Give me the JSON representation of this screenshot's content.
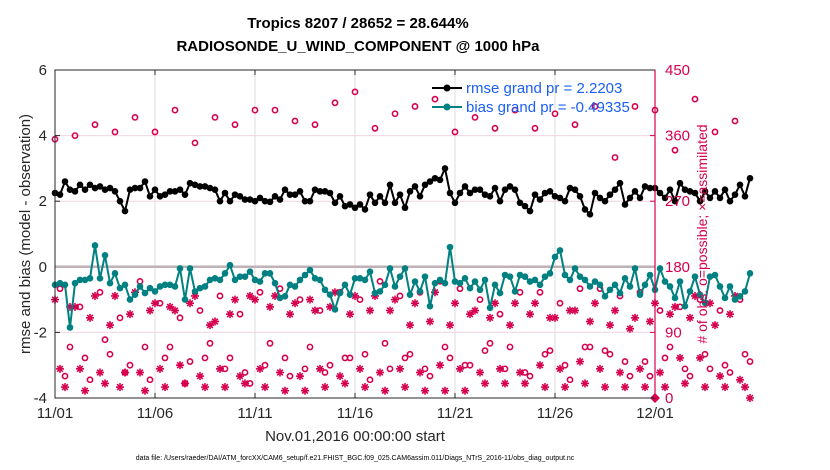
{
  "chart_data": {
    "type": "line",
    "title": "Tropics 8207 / 28652 = 28.644%",
    "subtitle": "RADIOSONDE_U_WIND_COMPONENT @ 1000 hPa",
    "xlabel": "Nov.01,2016 00:00:00 start",
    "ylabel": "rmse and bias (model - observation)",
    "ylabel_right": "# of obs: o=possible; ×=assimilated",
    "footnote": "data file: /Users/raeder/DAI/ATM_forcXX/CAM6_setup/f.e21.FHIST_BGC.f09_025.CAM6assim.011/Diags_NTrS_2016-11/obs_diag_output.nc",
    "x_ticks": [
      "11/01",
      "11/06",
      "11/11",
      "11/16",
      "11/21",
      "11/26",
      "12/01"
    ],
    "x_range_days": [
      0,
      30
    ],
    "ylim": [
      -4,
      6
    ],
    "y_ticks": [
      "-4",
      "-2",
      "0",
      "2",
      "4",
      "6"
    ],
    "ylim_right": [
      0,
      450
    ],
    "y_ticks_right": [
      "0",
      "90",
      "180",
      "270",
      "360",
      "450"
    ],
    "grid": true,
    "legend_position": "top-right",
    "legend": [
      {
        "label": "rmse grand pr = 2.2203",
        "color": "#000000",
        "marker": "filled-circle"
      },
      {
        "label": "bias grand pr = -0.49335",
        "color": "#008080",
        "marker": "filled-circle"
      }
    ],
    "colors": {
      "rmse": "#000000",
      "bias": "#008080",
      "obs": "#d6004f",
      "legend_text": "#1a5ff5"
    },
    "time_step_days": 0.25,
    "series": [
      {
        "name": "rmse",
        "values": [
          2.25,
          2.2,
          2.6,
          2.35,
          2.3,
          2.5,
          2.35,
          2.5,
          2.4,
          2.45,
          2.35,
          2.4,
          2.3,
          2.0,
          1.7,
          2.35,
          2.4,
          2.4,
          2.6,
          2.15,
          2.35,
          2.15,
          2.2,
          2.3,
          2.3,
          2.35,
          2.2,
          2.55,
          2.5,
          2.45,
          2.45,
          2.4,
          2.35,
          2.0,
          2.25,
          2.0,
          2.2,
          2.15,
          2.05,
          2.05,
          2.0,
          2.1,
          2.0,
          1.98,
          2.15,
          2.05,
          2.35,
          2.2,
          2.2,
          2.3,
          2.0,
          2.0,
          2.35,
          2.3,
          2.3,
          2.25,
          1.95,
          2.15,
          1.85,
          1.9,
          1.8,
          1.9,
          1.75,
          2.2,
          1.95,
          2.15,
          1.95,
          2.5,
          1.95,
          2.2,
          1.8,
          2.3,
          2.45,
          2.15,
          2.5,
          2.6,
          2.7,
          2.65,
          3.0,
          2.25,
          1.95,
          2.25,
          2.45,
          2.25,
          2.35,
          2.35,
          2.2,
          2.15,
          2.4,
          2.0,
          2.35,
          2.45,
          2.35,
          1.95,
          1.85,
          1.7,
          2.2,
          2.05,
          2.25,
          2.3,
          2.15,
          2.1,
          2.0,
          2.4,
          2.35,
          2.15,
          1.75,
          1.6,
          2.25,
          2.1,
          2.0,
          2.2,
          2.35,
          2.55,
          1.9,
          2.1,
          2.3,
          2.1,
          2.45,
          2.4,
          2.4,
          2.25,
          2.1,
          2.35,
          2.0,
          2.55,
          2.35,
          2.3,
          2.25,
          2.0,
          2.3,
          2.1,
          2.3,
          2.1,
          2.35,
          2.0,
          2.2,
          2.5,
          2.15,
          2.7
        ]
      },
      {
        "name": "bias",
        "values": [
          -0.55,
          -0.5,
          -0.55,
          -1.85,
          -0.5,
          -0.4,
          -0.4,
          -0.35,
          0.65,
          -0.35,
          0.35,
          -0.5,
          -0.2,
          -0.65,
          -0.55,
          -1.0,
          -0.85,
          -0.6,
          -0.8,
          -0.65,
          -0.75,
          -0.6,
          -0.55,
          -0.55,
          -0.6,
          -0.05,
          -1.0,
          -0.05,
          -0.75,
          -0.65,
          -0.6,
          -0.4,
          -0.35,
          -0.4,
          -0.2,
          0.05,
          -0.4,
          -0.3,
          -0.3,
          -0.15,
          -0.4,
          -0.45,
          -0.2,
          -0.2,
          -0.5,
          -0.95,
          -0.9,
          -0.55,
          -0.6,
          -0.4,
          -0.25,
          -0.1,
          -0.35,
          -0.4,
          -0.7,
          -0.85,
          -1.3,
          -0.8,
          -0.55,
          -0.85,
          -0.35,
          -0.35,
          -0.4,
          -0.15,
          -0.8,
          -0.75,
          -0.55,
          -0.05,
          -0.6,
          -0.3,
          -0.05,
          -0.85,
          -0.45,
          -0.75,
          -0.3,
          -1.2,
          -0.5,
          -0.4,
          -0.5,
          0.6,
          -0.45,
          -0.5,
          -0.35,
          -0.65,
          -0.45,
          -0.7,
          -0.4,
          -1.25,
          -0.55,
          -0.8,
          -0.25,
          -0.3,
          -0.75,
          -0.25,
          -0.3,
          -0.45,
          -0.4,
          -0.55,
          -0.3,
          -0.2,
          0.3,
          0.5,
          -0.25,
          -0.4,
          -0.05,
          -0.3,
          -0.4,
          -0.6,
          -0.45,
          -0.55,
          -0.9,
          -0.7,
          -0.55,
          -0.8,
          -0.35,
          -0.6,
          -0.05,
          -0.85,
          -0.55,
          -0.25,
          -0.7,
          -0.05,
          -0.45,
          -0.6,
          -0.95,
          -0.45,
          -1.2,
          -0.75,
          -0.3,
          -0.85,
          -1.1,
          -0.3,
          -0.25,
          -0.6,
          -0.95,
          -0.6,
          -1.0,
          -0.9,
          -0.75,
          -0.2
        ]
      },
      {
        "name": "obs_possible",
        "values": [
          355,
          150,
          30,
          70,
          360,
          125,
          55,
          25,
          375,
          145,
          80,
          60,
          365,
          110,
          35,
          45,
          385,
          160,
          70,
          25,
          365,
          130,
          55,
          70,
          395,
          110,
          20,
          50,
          350,
          120,
          55,
          75,
          385,
          140,
          40,
          55,
          375,
          115,
          35,
          20,
          395,
          145,
          45,
          75,
          395,
          150,
          55,
          30,
          380,
          135,
          40,
          70,
          375,
          120,
          35,
          45,
          405,
          145,
          55,
          55,
          420,
          135,
          60,
          25,
          370,
          160,
          75,
          40,
          390,
          140,
          55,
          60,
          400,
          145,
          40,
          30,
          410,
          160,
          70,
          55,
          365,
          150,
          45,
          45,
          385,
          135,
          65,
          75,
          370,
          115,
          40,
          70,
          395,
          145,
          35,
          30,
          370,
          145,
          60,
          65,
          390,
          130,
          45,
          25,
          375,
          150,
          70,
          70,
          400,
          150,
          65,
          60,
          330,
          140,
          50,
          30,
          400,
          145,
          50,
          30,
          395,
          120,
          55,
          70,
          340,
          125,
          40,
          30,
          410,
          135,
          60,
          40,
          365,
          120,
          45,
          35,
          380,
          135,
          60,
          50
        ]
      },
      {
        "name": "obs_assimilated",
        "values": [
          135,
          40,
          15,
          125,
          125,
          40,
          10,
          110,
          140,
          35,
          20,
          100,
          140,
          15,
          35,
          115,
          145,
          35,
          10,
          120,
          130,
          40,
          15,
          125,
          120,
          45,
          20,
          130,
          140,
          30,
          15,
          100,
          105,
          40,
          15,
          115,
          135,
          30,
          20,
          140,
          135,
          40,
          15,
          125,
          140,
          35,
          10,
          115,
          130,
          30,
          10,
          135,
          120,
          40,
          15,
          125,
          145,
          30,
          20,
          115,
          140,
          40,
          15,
          120,
          140,
          35,
          10,
          120,
          135,
          40,
          15,
          100,
          130,
          35,
          10,
          105,
          145,
          45,
          10,
          100,
          130,
          40,
          10,
          115,
          120,
          35,
          20,
          110,
          130,
          40,
          20,
          100,
          130,
          35,
          20,
          115,
          130,
          45,
          15,
          110,
          110,
          40,
          15,
          120,
          120,
          50,
          20,
          105,
          130,
          40,
          15,
          100,
          120,
          35,
          15,
          95,
          110,
          40,
          15,
          105,
          130,
          35,
          15,
          115,
          125,
          55,
          20,
          110,
          140,
          55,
          15,
          130,
          100,
          30,
          15,
          115,
          140,
          25,
          15,
          0
        ]
      }
    ]
  }
}
